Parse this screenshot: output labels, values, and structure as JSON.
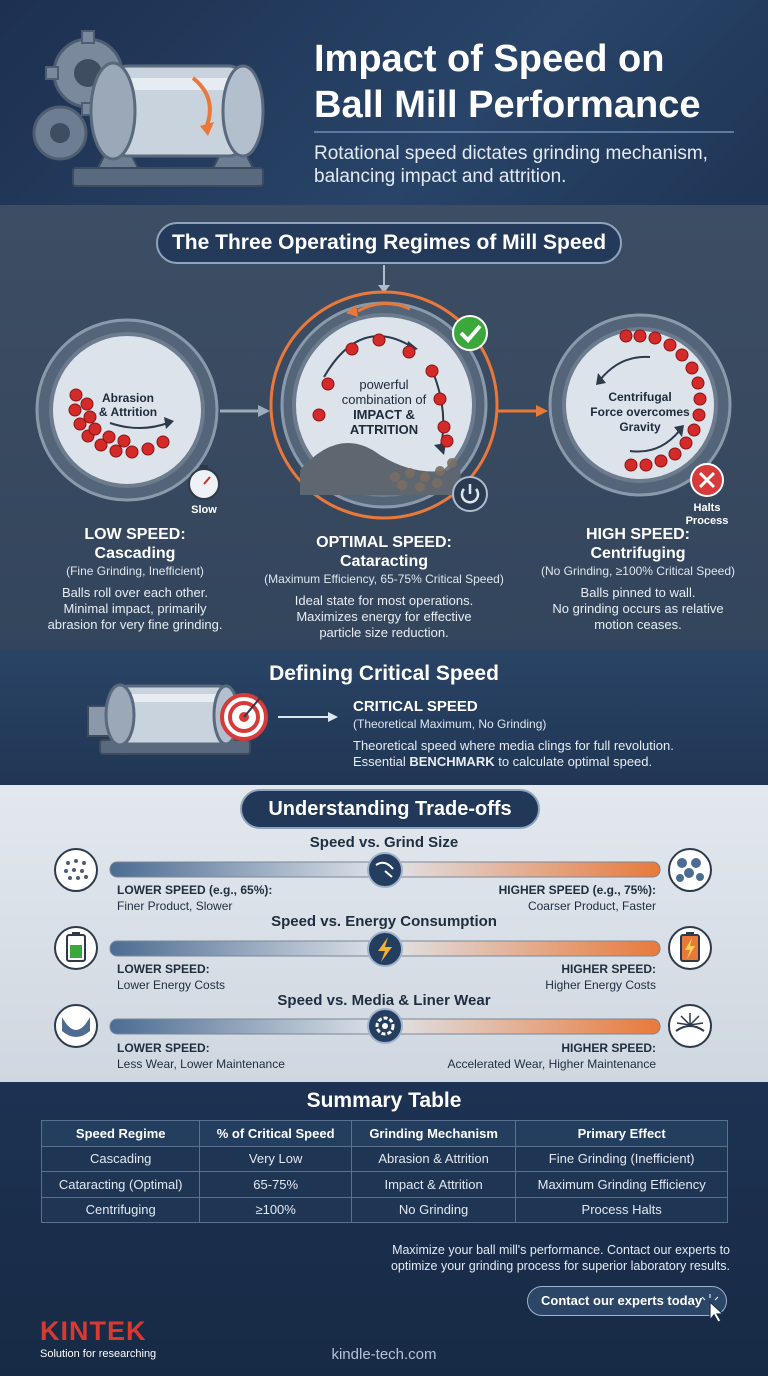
{
  "header": {
    "title_line1": "Impact of Speed on",
    "title_line2": "Ball Mill Performance",
    "subtitle_line1": "Rotational speed dictates grinding mechanism,",
    "subtitle_line2": "balancing impact and attrition."
  },
  "regimes": {
    "heading": "The Three Operating Regimes of Mill Speed",
    "low": {
      "circle_line1": "Abrasion",
      "circle_line2": "& Attrition",
      "badge": "Slow",
      "title_line1": "LOW SPEED:",
      "title_line2": "Cascading",
      "sub": "(Fine Grinding, Inefficient)",
      "desc_line1": "Balls roll over each other.",
      "desc_line2": "Minimal impact, primarily",
      "desc_line3": "abrasion for very fine grinding."
    },
    "optimal": {
      "circle_line1": "powerful",
      "circle_line2": "combination of",
      "circle_line3": "IMPACT &",
      "circle_line4": "ATTRITION",
      "title_line1": "OPTIMAL SPEED:",
      "title_line2": "Cataracting",
      "sub": "(Maximum Efficiency, 65-75% Critical Speed)",
      "desc_line1": "Ideal state for most operations.",
      "desc_line2": "Maximizes energy for effective",
      "desc_line3": "particle size reduction."
    },
    "high": {
      "circle_line1": "Centrifugal",
      "circle_line2": "Force overcomes",
      "circle_line3": "Gravity",
      "badge_line1": "Halts",
      "badge_line2": "Process",
      "title_line1": "HIGH SPEED:",
      "title_line2": "Centrifuging",
      "sub": "(No Grinding, ≥100% Critical Speed)",
      "desc_line1": "Balls pinned to wall.",
      "desc_line2": "No grinding occurs as relative",
      "desc_line3": "motion ceases."
    },
    "colors": {
      "accent": "#e8793a",
      "ball": "#d42a2a",
      "check": "#3aa83a",
      "cross": "#d63a3a"
    }
  },
  "critical": {
    "heading": "Defining Critical Speed",
    "title": "CRITICAL SPEED",
    "sub": "(Theoretical Maximum, No Grinding)",
    "desc_line1": "Theoretical speed where media clings for full revolution.",
    "desc_prefix": "Essential ",
    "desc_bold": "BENCHMARK",
    "desc_suffix": " to calculate optimal speed."
  },
  "tradeoffs": {
    "heading": "Understanding Trade-offs",
    "items": [
      {
        "title": "Speed vs. Grind Size",
        "left_bold": "LOWER SPEED (e.g., 65%):",
        "left_text": "Finer Product, Slower",
        "right_bold": "HIGHER SPEED (e.g., 75%):",
        "right_text": "Coarser Product, Faster",
        "left_icon": "fine-particles-icon",
        "center_icon": "speed-dial-icon",
        "right_icon": "coarse-particles-icon"
      },
      {
        "title": "Speed vs. Energy Consumption",
        "left_bold": "LOWER SPEED:",
        "left_text": "Lower Energy Costs",
        "right_bold": "HIGHER SPEED:",
        "right_text": "Higher Energy Costs",
        "left_icon": "battery-full-icon",
        "center_icon": "lightning-bolt-icon",
        "right_icon": "battery-charging-icon"
      },
      {
        "title": "Speed vs. Media & Liner Wear",
        "left_bold": "LOWER SPEED:",
        "left_text": "Less Wear, Lower Maintenance",
        "right_bold": "HIGHER SPEED:",
        "right_text": "Accelerated Wear, Higher Maintenance",
        "left_icon": "worn-liner-icon",
        "center_icon": "gear-icon",
        "right_icon": "impact-burst-icon"
      }
    ]
  },
  "summary": {
    "heading": "Summary Table",
    "columns": [
      "Speed Regime",
      "% of Critical Speed",
      "Grinding Mechanism",
      "Primary Effect"
    ],
    "rows": [
      [
        "Cascading",
        "Very Low",
        "Abrasion & Attrition",
        "Fine Grinding (Inefficient)"
      ],
      [
        "Cataracting (Optimal)",
        "65-75%",
        "Impact & Attrition",
        "Maximum Grinding Efficiency"
      ],
      [
        "Centrifuging",
        "≥100%",
        "No Grinding",
        "Process Halts"
      ]
    ],
    "cta_line1": "Maximize your ball mill's performance. Contact our experts to",
    "cta_line2": "optimize your grinding process for superior laboratory results.",
    "cta_button": "Contact our experts today"
  },
  "footer": {
    "logo": "KINTEK",
    "tagline": "Solution for researching",
    "site": "kindle-tech.com"
  }
}
